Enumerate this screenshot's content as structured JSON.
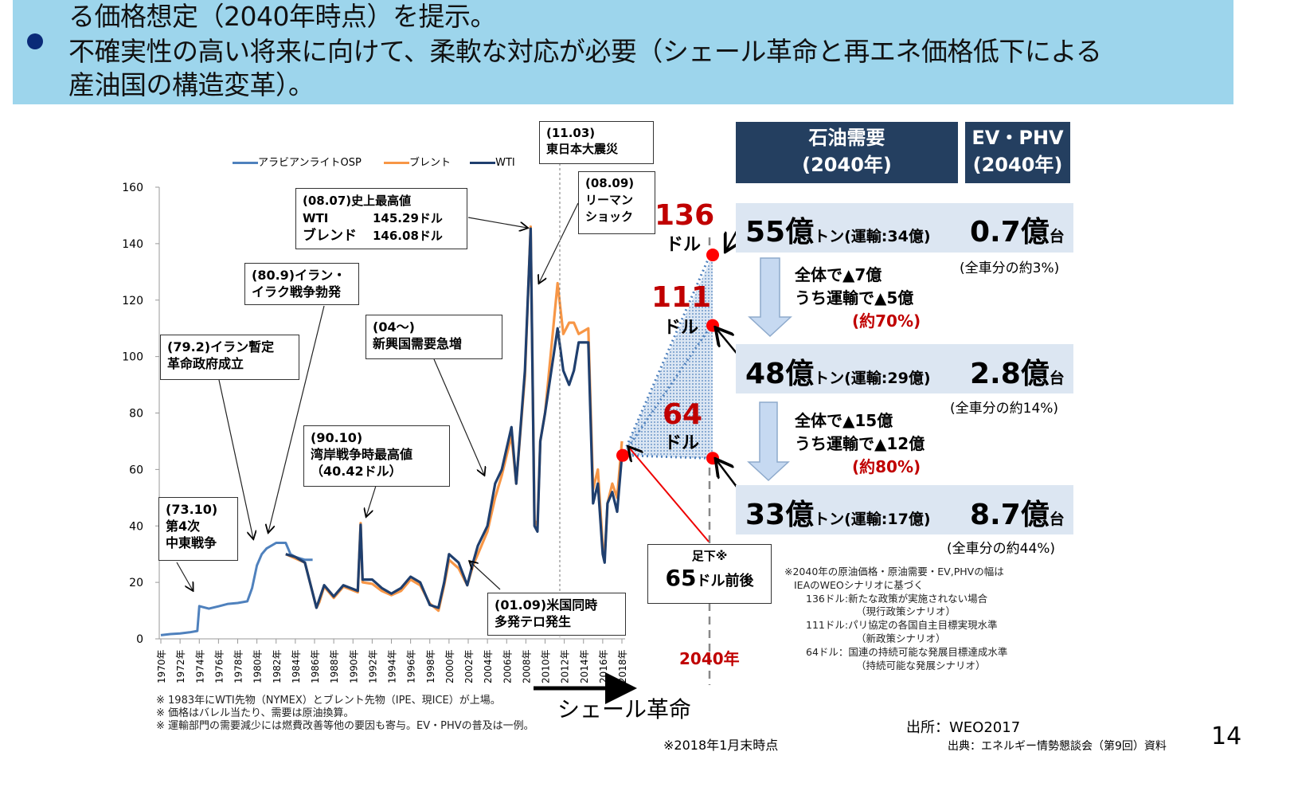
{
  "banner": {
    "line1": "る価格想定（2040年時点）を提示。",
    "line2": "不確実性の高い将来に向けて、柔軟な対応が必要（シェール革命と再エネ価格低下による",
    "line3": "産油国の構造変革）。"
  },
  "chart_data": {
    "type": "line",
    "xlabel": "",
    "ylabel": "",
    "ylim": [
      0,
      160
    ],
    "yticks": [
      0,
      20,
      40,
      60,
      80,
      100,
      120,
      140,
      160
    ],
    "xticks": [
      "1970年",
      "1972年",
      "1974年",
      "1976年",
      "1978年",
      "1980年",
      "1982年",
      "1984年",
      "1986年",
      "1988年",
      "1990年",
      "1992年",
      "1994年",
      "1996年",
      "1998年",
      "2000年",
      "2002年",
      "2004年",
      "2006年",
      "2008年",
      "2010年",
      "2012年",
      "2014年",
      "2016年",
      "2018年"
    ],
    "legend_position": "top",
    "series": [
      {
        "name": "アラビアンライトOSP",
        "color": "#4f81bd",
        "x": [
          1970,
          1971,
          1972,
          1973,
          1973.8,
          1974,
          1975,
          1976,
          1977,
          1978,
          1979,
          1979.5,
          1980,
          1980.5,
          1981,
          1982,
          1983,
          1983.5,
          1984,
          1985,
          1985.8
        ],
        "y": [
          1.3,
          1.7,
          1.9,
          2.3,
          2.8,
          11.6,
          10.7,
          11.5,
          12.4,
          12.7,
          13.3,
          18,
          26,
          30,
          32,
          34,
          34,
          30,
          29,
          28,
          28
        ]
      },
      {
        "name": "ブレント",
        "color": "#f79646",
        "x": [
          1983,
          1984,
          1985,
          1986.2,
          1986.5,
          1987,
          1988,
          1989,
          1990.5,
          1990.8,
          1991,
          1992,
          1993,
          1994,
          1995,
          1996,
          1997,
          1998,
          1998.9,
          1999.5,
          2000,
          2001,
          2001.9,
          2002.5,
          2003,
          2004,
          2004.8,
          2005.5,
          2006.5,
          2007,
          2007.9,
          2008.5,
          2008.9,
          2009.2,
          2009.5,
          2010,
          2011.3,
          2011.9,
          2012.5,
          2013,
          2013.5,
          2014.5,
          2015,
          2015.5,
          2016,
          2016.2,
          2016.5,
          2017,
          2017.5,
          2018
        ],
        "y": [
          30,
          28.5,
          27,
          11,
          13,
          18.5,
          14.5,
          18.5,
          16.5,
          41,
          20,
          19.5,
          17,
          15.5,
          17,
          21,
          19,
          12.5,
          10,
          19,
          28,
          25,
          19,
          26,
          30,
          38,
          50,
          58,
          72,
          55,
          93,
          146,
          42,
          40,
          70,
          80,
          126,
          108,
          112,
          112,
          108,
          110,
          53,
          60,
          33,
          29,
          48,
          55,
          50,
          70
        ]
      },
      {
        "name": "WTI",
        "color": "#1f3f6e",
        "x": [
          1983,
          1984,
          1985,
          1986.2,
          1986.5,
          1987,
          1988,
          1989,
          1990.5,
          1990.8,
          1991,
          1992,
          1993,
          1994,
          1995,
          1996,
          1997,
          1998,
          1998.9,
          1999.5,
          2000,
          2001,
          2001.9,
          2002.5,
          2003,
          2004,
          2004.8,
          2005.5,
          2006.5,
          2007,
          2007.9,
          2008.5,
          2008.9,
          2009.2,
          2009.5,
          2010,
          2011.3,
          2011.9,
          2012.5,
          2013,
          2013.5,
          2014.5,
          2015,
          2015.5,
          2016,
          2016.2,
          2016.5,
          2017,
          2017.5,
          2018
        ],
        "y": [
          30,
          29,
          27,
          11,
          14,
          19,
          15,
          19,
          17,
          40.42,
          21,
          21,
          18,
          16,
          18,
          22,
          20,
          12,
          11,
          20,
          30,
          27,
          19,
          27,
          33,
          40,
          55,
          60,
          75,
          55,
          95,
          145.29,
          40,
          38,
          70,
          80,
          110,
          95,
          90,
          95,
          105,
          105,
          48,
          55,
          30,
          27,
          48,
          52,
          45,
          65
        ]
      }
    ],
    "projection_2040": {
      "label": "2040年",
      "start_value": 65,
      "values": [
        136,
        111,
        64
      ],
      "value_labels": [
        "136",
        "111",
        "64"
      ],
      "unit": "ドル"
    }
  },
  "annotations": {
    "quake": [
      "(11.03)",
      "東日本大震災"
    ],
    "lehman": [
      "(08.09)",
      "リーマン",
      "ショック"
    ],
    "record": [
      "(08.07)史上最高値",
      "WTI",
      "145.29ドル",
      "ブレンド",
      "146.08ドル"
    ],
    "iraniraq": [
      "(80.9)イラン・",
      "イラク戦争勃発"
    ],
    "emerging": [
      "(04～)",
      "新興国需要急増"
    ],
    "iran": [
      "(79.2)イラン暫定",
      "革命政府成立"
    ],
    "gulf": [
      "(90.10)",
      "湾岸戦争時最高値",
      "（40.42ドル）"
    ],
    "mideast": [
      "(73.10)",
      "第4次",
      "中東戦争"
    ],
    "terror": [
      "(01.09)米国同時",
      "多発テロ発生"
    ],
    "current": {
      "line1": "足下※",
      "value": "65",
      "unit": "ドル前後"
    }
  },
  "shale": "シェール革命",
  "panel": {
    "oil_header": [
      "石油需要",
      "(2040年)"
    ],
    "ev_header": [
      "EV・PHV",
      "(2040年)"
    ],
    "rows": [
      {
        "demand": "55億",
        "unit": "トン",
        "transport": "(運輸:34億)",
        "ev": "0.7億",
        "ev_unit": "台",
        "share": "(全車分の約3%)"
      },
      {
        "demand": "48億",
        "unit": "トン",
        "transport": "(運輸:29億)",
        "ev": "2.8億",
        "ev_unit": "台",
        "share": "(全車分の約14%)"
      },
      {
        "demand": "33億",
        "unit": "トン",
        "transport": "(運輸:17億)",
        "ev": "8.7億",
        "ev_unit": "台",
        "share": "(全車分の約44%)"
      }
    ],
    "changes": [
      {
        "total": "全体で▲7億",
        "transport": "うち運輸で▲5億",
        "ratio": "(約70%)"
      },
      {
        "total": "全体で▲15億",
        "transport": "うち運輸で▲12億",
        "ratio": "(約80%)"
      }
    ]
  },
  "scenario_note": [
    "※2040年の原油価格・原油需要・EV,PHVの幅は",
    "IEAのWEOシナリオに基づく",
    "136ドル:新たな政策が実施されない場合",
    "（現行政策シナリオ）",
    "111ドル:パリ協定の各国自主目標実現水準",
    "（新政策シナリオ）",
    "64ドル：国連の持続可能な発展目標達成水準",
    "（持続可能な発展シナリオ）"
  ],
  "footnotes": [
    "※ 1983年にWTI先物（NYMEX）とブレント先物（IPE、現ICE）が上場。",
    "※ 価格はバレル当たり、需要は原油換算。",
    "※ 運輸部門の需要減少には燃費改善等他の要因も寄与。EV・PHVの普及は一例。"
  ],
  "as_of": "※2018年1月末時点",
  "source": "出所：WEO2017",
  "origin": "出典：エネルギー情勢懇談会（第9回）資料",
  "page_number": "14"
}
